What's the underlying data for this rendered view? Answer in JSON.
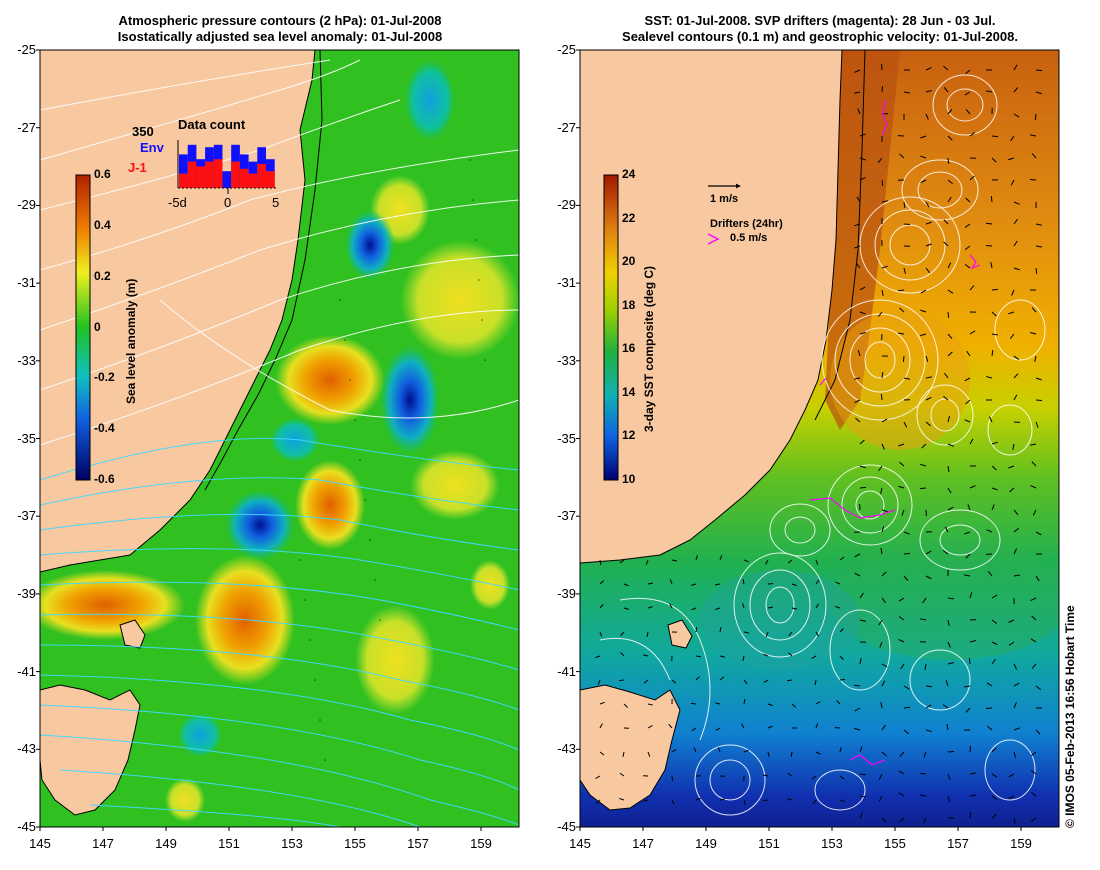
{
  "left_panel": {
    "title_line1": "Atmospheric pressure contours (2 hPa): 01-Jul-2008",
    "title_line2": "Isostatically adjusted sea level anomaly: 01-Jul-2008",
    "colorbar": {
      "label": "Sea level anomaly (m)",
      "ticks": [
        "0.6",
        "0.4",
        "0.2",
        "0",
        "-0.2",
        "-0.4",
        "-0.6"
      ]
    },
    "inset": {
      "title": "Data count",
      "max_label": "350",
      "series1": "Env",
      "series2": "J-1",
      "series1_color": "#1010ff",
      "series2_color": "#ff1010",
      "xticks": [
        "-5d",
        "0",
        "5"
      ],
      "env_values": [
        0.7,
        0.9,
        0.6,
        0.85,
        0.9,
        0.35,
        0.9,
        0.7,
        0.55,
        0.85,
        0.6
      ],
      "j1_values": [
        0.3,
        0.55,
        0.45,
        0.55,
        0.6,
        0.0,
        0.55,
        0.4,
        0.3,
        0.5,
        0.35
      ]
    }
  },
  "right_panel": {
    "title_line1": "SST: 01-Jul-2008. SVP drifters (magenta): 28 Jun - 03 Jul.",
    "title_line2": "Sealevel contours (0.1 m) and geostrophic velocity: 01-Jul-2008.",
    "colorbar": {
      "label": "3-day SST composite (deg C)",
      "ticks": [
        "24",
        "22",
        "20",
        "18",
        "16",
        "14",
        "12",
        "10"
      ]
    },
    "velocity_scale": "1 m/s",
    "drifters_label": "Drifters (24hr)",
    "drifters_scale": "0.5 m/s",
    "drifter_color": "#ff00ff"
  },
  "axes": {
    "lat_ticks": [
      "-25",
      "-27",
      "-29",
      "-31",
      "-33",
      "-35",
      "-37",
      "-39",
      "-41",
      "-43",
      "-45"
    ],
    "lon_ticks": [
      "145",
      "147",
      "149",
      "151",
      "153",
      "155",
      "157",
      "159"
    ]
  },
  "credit": "© IMOS 05-Feb-2013 16:56 Hobart Time",
  "colors": {
    "land": "#f8c8a0",
    "sla_background": "#30c020",
    "sst_background": "#f0b000"
  }
}
